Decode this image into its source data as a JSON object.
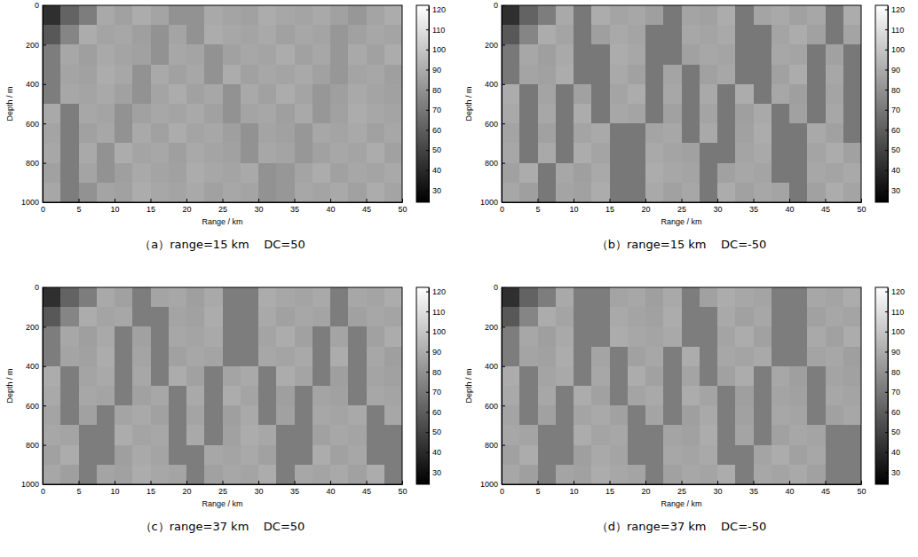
{
  "chart_data": [
    {
      "type": "heatmap",
      "title": "（a）range=15 km    DC=50",
      "xlabel": "Range / km",
      "ylabel": "Depth / m",
      "xlim": [
        0,
        50
      ],
      "ylim": [
        1000,
        0
      ],
      "xticks": [
        0,
        5,
        10,
        15,
        20,
        25,
        30,
        35,
        40,
        45,
        50
      ],
      "yticks": [
        0,
        200,
        400,
        600,
        800,
        1000
      ],
      "x_bins": [
        0,
        2.5,
        5,
        7.5,
        10,
        12.5,
        15,
        17.5,
        20,
        22.5,
        25,
        27.5,
        30,
        32.5,
        35,
        37.5,
        40,
        42.5,
        45,
        47.5,
        50
      ],
      "y_bins": [
        0,
        100,
        200,
        300,
        400,
        500,
        600,
        700,
        800,
        900,
        1000
      ],
      "cells": [
        [
          42,
          62,
          72,
          89,
          86,
          90,
          87,
          80,
          80,
          89,
          87,
          86,
          90,
          88,
          87,
          89,
          86,
          82,
          87,
          90
        ],
        [
          58,
          75,
          90,
          87,
          88,
          85,
          80,
          87,
          80,
          90,
          88,
          87,
          89,
          86,
          88,
          87,
          82,
          86,
          88,
          87
        ],
        [
          72,
          88,
          85,
          89,
          87,
          86,
          80,
          88,
          87,
          80,
          86,
          88,
          87,
          90,
          86,
          88,
          82,
          89,
          86,
          90
        ],
        [
          72,
          87,
          86,
          90,
          88,
          80,
          89,
          86,
          88,
          80,
          90,
          86,
          88,
          87,
          89,
          86,
          82,
          87,
          88,
          85
        ],
        [
          72,
          88,
          87,
          89,
          86,
          80,
          87,
          90,
          86,
          88,
          80,
          89,
          86,
          90,
          87,
          82,
          85,
          89,
          87,
          86
        ],
        [
          89,
          72,
          88,
          87,
          80,
          86,
          88,
          87,
          89,
          86,
          80,
          87,
          88,
          85,
          89,
          82,
          86,
          90,
          88,
          87
        ],
        [
          87,
          72,
          86,
          88,
          80,
          89,
          86,
          90,
          87,
          88,
          85,
          80,
          87,
          86,
          82,
          88,
          87,
          89,
          86,
          88
        ],
        [
          88,
          72,
          89,
          80,
          90,
          87,
          88,
          85,
          89,
          87,
          86,
          80,
          88,
          87,
          82,
          86,
          88,
          87,
          90,
          86
        ],
        [
          86,
          72,
          87,
          80,
          85,
          89,
          87,
          86,
          90,
          88,
          87,
          89,
          80,
          82,
          87,
          90,
          86,
          88,
          87,
          89
        ],
        [
          88,
          72,
          80,
          87,
          86,
          90,
          88,
          87,
          89,
          86,
          88,
          87,
          80,
          82,
          88,
          87,
          89,
          86,
          90,
          87
        ]
      ],
      "colorbar": {
        "range": [
          24,
          122
        ],
        "ticks": [
          30,
          40,
          50,
          60,
          70,
          80,
          90,
          100,
          110,
          120
        ]
      }
    },
    {
      "type": "heatmap",
      "title": "（b）range=15 km    DC=-50",
      "xlabel": "Range / km",
      "ylabel": "Depth / m",
      "xlim": [
        0,
        50
      ],
      "ylim": [
        1000,
        0
      ],
      "xticks": [
        0,
        5,
        10,
        15,
        20,
        25,
        30,
        35,
        40,
        45,
        50
      ],
      "yticks": [
        0,
        200,
        400,
        600,
        800,
        1000
      ],
      "x_bins": [
        0,
        2.5,
        5,
        7.5,
        10,
        12.5,
        15,
        17.5,
        20,
        22.5,
        25,
        27.5,
        30,
        32.5,
        35,
        37.5,
        40,
        42.5,
        45,
        47.5,
        50
      ],
      "y_bins": [
        0,
        100,
        200,
        300,
        400,
        500,
        600,
        700,
        800,
        900,
        1000
      ],
      "cells": [
        [
          42,
          62,
          72,
          89,
          70,
          90,
          87,
          88,
          85,
          70,
          87,
          86,
          90,
          70,
          87,
          89,
          86,
          88,
          70,
          90
        ],
        [
          58,
          75,
          90,
          87,
          70,
          85,
          89,
          87,
          70,
          70,
          88,
          87,
          89,
          70,
          70,
          87,
          90,
          86,
          70,
          87
        ],
        [
          70,
          88,
          85,
          89,
          70,
          70,
          90,
          88,
          70,
          70,
          86,
          88,
          87,
          70,
          70,
          88,
          87,
          70,
          86,
          70
        ],
        [
          70,
          87,
          86,
          90,
          70,
          70,
          89,
          86,
          70,
          87,
          70,
          86,
          88,
          70,
          70,
          86,
          90,
          70,
          88,
          70
        ],
        [
          90,
          70,
          87,
          70,
          86,
          70,
          87,
          90,
          70,
          88,
          70,
          89,
          70,
          90,
          70,
          88,
          85,
          70,
          87,
          70
        ],
        [
          89,
          70,
          88,
          70,
          90,
          70,
          88,
          87,
          70,
          86,
          70,
          87,
          70,
          85,
          89,
          70,
          86,
          70,
          88,
          70
        ],
        [
          87,
          70,
          86,
          70,
          87,
          89,
          70,
          70,
          87,
          88,
          70,
          89,
          70,
          86,
          90,
          70,
          70,
          89,
          86,
          70
        ],
        [
          88,
          70,
          89,
          70,
          90,
          87,
          70,
          70,
          89,
          87,
          86,
          70,
          70,
          87,
          89,
          70,
          70,
          87,
          90,
          86
        ],
        [
          86,
          90,
          70,
          88,
          85,
          89,
          70,
          70,
          90,
          88,
          87,
          70,
          86,
          88,
          87,
          70,
          70,
          88,
          87,
          89
        ],
        [
          88,
          85,
          70,
          87,
          86,
          90,
          70,
          70,
          89,
          86,
          88,
          70,
          90,
          86,
          88,
          87,
          70,
          86,
          90,
          87
        ]
      ],
      "colorbar": {
        "range": [
          24,
          122
        ],
        "ticks": [
          30,
          40,
          50,
          60,
          70,
          80,
          90,
          100,
          110,
          120
        ]
      }
    },
    {
      "type": "heatmap",
      "title": "（c）range=37 km    DC=50",
      "xlabel": "Range / km",
      "ylabel": "Depth / m",
      "xlim": [
        0,
        50
      ],
      "ylim": [
        1000,
        0
      ],
      "xticks": [
        0,
        5,
        10,
        15,
        20,
        25,
        30,
        35,
        40,
        45,
        50
      ],
      "yticks": [
        0,
        200,
        400,
        600,
        800,
        1000
      ],
      "x_bins": [
        0,
        2.5,
        5,
        7.5,
        10,
        12.5,
        15,
        17.5,
        20,
        22.5,
        25,
        27.5,
        30,
        32.5,
        35,
        37.5,
        40,
        42.5,
        45,
        47.5,
        50
      ],
      "y_bins": [
        0,
        100,
        200,
        300,
        400,
        500,
        600,
        700,
        800,
        900,
        1000
      ],
      "cells": [
        [
          42,
          62,
          72,
          89,
          86,
          72,
          87,
          88,
          85,
          89,
          72,
          72,
          90,
          88,
          87,
          89,
          72,
          88,
          87,
          90
        ],
        [
          58,
          75,
          90,
          87,
          88,
          72,
          72,
          87,
          86,
          90,
          72,
          72,
          89,
          86,
          88,
          87,
          72,
          86,
          88,
          87
        ],
        [
          72,
          88,
          85,
          89,
          72,
          86,
          72,
          88,
          87,
          89,
          72,
          72,
          87,
          90,
          86,
          72,
          87,
          72,
          86,
          90
        ],
        [
          72,
          87,
          86,
          90,
          72,
          87,
          72,
          86,
          88,
          87,
          72,
          72,
          88,
          87,
          89,
          72,
          90,
          72,
          88,
          85
        ],
        [
          90,
          72,
          87,
          89,
          72,
          88,
          72,
          90,
          86,
          72,
          87,
          89,
          72,
          90,
          87,
          72,
          85,
          72,
          87,
          86
        ],
        [
          89,
          72,
          88,
          87,
          72,
          86,
          88,
          72,
          89,
          72,
          90,
          87,
          72,
          85,
          72,
          87,
          86,
          72,
          88,
          87
        ],
        [
          87,
          72,
          86,
          72,
          87,
          89,
          86,
          72,
          87,
          72,
          85,
          89,
          72,
          86,
          72,
          88,
          87,
          89,
          72,
          88
        ],
        [
          88,
          87,
          72,
          72,
          90,
          87,
          88,
          72,
          89,
          72,
          86,
          90,
          88,
          72,
          72,
          86,
          88,
          87,
          72,
          72
        ],
        [
          86,
          90,
          72,
          72,
          85,
          89,
          87,
          72,
          72,
          88,
          87,
          89,
          86,
          72,
          72,
          90,
          86,
          88,
          72,
          72
        ],
        [
          88,
          85,
          72,
          87,
          86,
          90,
          88,
          87,
          72,
          86,
          88,
          87,
          90,
          72,
          88,
          87,
          89,
          86,
          90,
          72
        ]
      ],
      "colorbar": {
        "range": [
          24,
          122
        ],
        "ticks": [
          30,
          40,
          50,
          60,
          70,
          80,
          90,
          100,
          110,
          120
        ]
      }
    },
    {
      "type": "heatmap",
      "title": "（d）range=37 km    DC=-50",
      "xlabel": "Range / km",
      "ylabel": "Depth / m",
      "xlim": [
        0,
        50
      ],
      "ylim": [
        1000,
        0
      ],
      "xticks": [
        0,
        5,
        10,
        15,
        20,
        25,
        30,
        35,
        40,
        45,
        50
      ],
      "yticks": [
        0,
        200,
        400,
        600,
        800,
        1000
      ],
      "x_bins": [
        0,
        2.5,
        5,
        7.5,
        10,
        12.5,
        15,
        17.5,
        20,
        22.5,
        25,
        27.5,
        30,
        32.5,
        35,
        37.5,
        40,
        42.5,
        45,
        47.5,
        50
      ],
      "y_bins": [
        0,
        100,
        200,
        300,
        400,
        500,
        600,
        700,
        800,
        900,
        1000
      ],
      "cells": [
        [
          42,
          62,
          72,
          89,
          72,
          72,
          87,
          88,
          85,
          89,
          72,
          86,
          90,
          88,
          87,
          72,
          72,
          88,
          87,
          90
        ],
        [
          58,
          75,
          90,
          87,
          72,
          72,
          89,
          87,
          86,
          90,
          72,
          72,
          89,
          86,
          88,
          72,
          72,
          86,
          88,
          87
        ],
        [
          72,
          88,
          85,
          89,
          72,
          72,
          90,
          88,
          87,
          89,
          72,
          72,
          87,
          90,
          86,
          72,
          72,
          89,
          86,
          90
        ],
        [
          72,
          87,
          86,
          90,
          72,
          87,
          72,
          86,
          88,
          72,
          90,
          72,
          88,
          87,
          89,
          72,
          72,
          87,
          88,
          85
        ],
        [
          90,
          72,
          87,
          89,
          72,
          88,
          72,
          90,
          86,
          72,
          87,
          72,
          86,
          90,
          72,
          88,
          85,
          72,
          87,
          86
        ],
        [
          89,
          72,
          88,
          72,
          90,
          86,
          72,
          87,
          89,
          72,
          90,
          87,
          72,
          85,
          72,
          87,
          86,
          72,
          88,
          87
        ],
        [
          87,
          72,
          86,
          72,
          87,
          89,
          86,
          72,
          87,
          72,
          85,
          89,
          72,
          86,
          72,
          88,
          87,
          72,
          86,
          88
        ],
        [
          88,
          87,
          72,
          72,
          90,
          87,
          88,
          72,
          72,
          87,
          86,
          90,
          72,
          87,
          72,
          86,
          88,
          87,
          72,
          72
        ],
        [
          86,
          90,
          72,
          72,
          85,
          89,
          87,
          72,
          72,
          88,
          87,
          89,
          72,
          72,
          87,
          90,
          86,
          88,
          72,
          72
        ],
        [
          88,
          85,
          72,
          87,
          86,
          90,
          88,
          87,
          72,
          86,
          88,
          87,
          90,
          72,
          88,
          87,
          89,
          86,
          72,
          72
        ]
      ],
      "colorbar": {
        "range": [
          24,
          122
        ],
        "ticks": [
          30,
          40,
          50,
          60,
          70,
          80,
          90,
          100,
          110,
          120
        ]
      }
    }
  ]
}
